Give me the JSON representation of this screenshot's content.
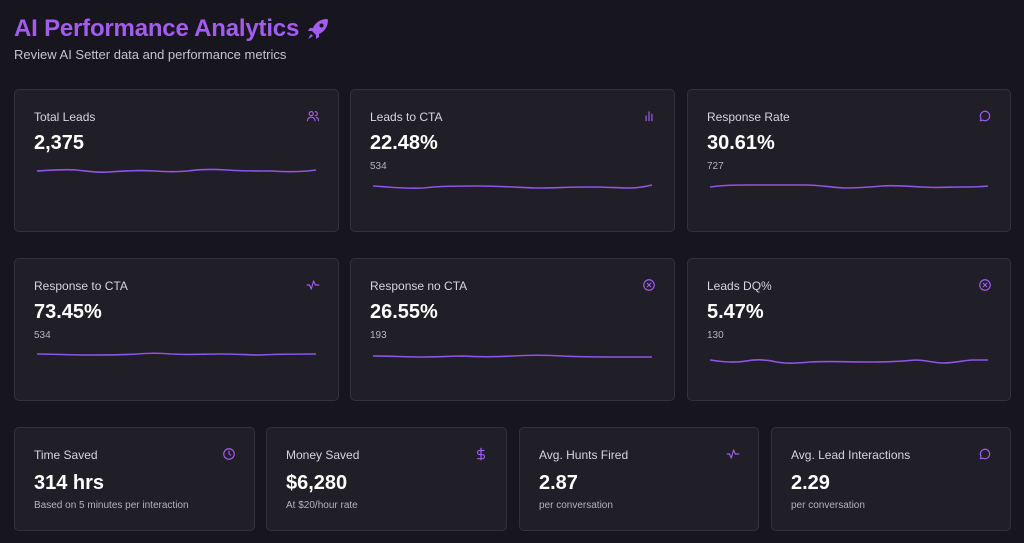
{
  "header": {
    "title": "AI Performance Analytics",
    "subtitle": "Review AI Setter data and performance metrics"
  },
  "colors": {
    "accent": "#a35cf0",
    "background": "#17151d",
    "card": "#201e27",
    "card_border": "#34313d",
    "sparkline": "#8f55e6"
  },
  "metrics": [
    {
      "label": "Total Leads",
      "value": "2,375",
      "sub": "",
      "icon": "users-icon"
    },
    {
      "label": "Leads to CTA",
      "value": "22.48%",
      "sub": "534",
      "icon": "bar-chart-icon"
    },
    {
      "label": "Response Rate",
      "value": "30.61%",
      "sub": "727",
      "icon": "message-circle-icon"
    },
    {
      "label": "Response to CTA",
      "value": "73.45%",
      "sub": "534",
      "icon": "activity-icon"
    },
    {
      "label": "Response no CTA",
      "value": "26.55%",
      "sub": "193",
      "icon": "x-circle-icon"
    },
    {
      "label": "Leads DQ%",
      "value": "5.47%",
      "sub": "130",
      "icon": "x-circle-icon"
    }
  ],
  "summary": [
    {
      "label": "Time Saved",
      "value": "314 hrs",
      "sub": "Based on 5 minutes per interaction",
      "icon": "clock-icon"
    },
    {
      "label": "Money Saved",
      "value": "$6,280",
      "sub": "At $20/hour rate",
      "icon": "dollar-icon"
    },
    {
      "label": "Avg. Hunts Fired",
      "value": "2.87",
      "sub": "per conversation",
      "icon": "activity-icon"
    },
    {
      "label": "Avg. Lead Interactions",
      "value": "2.29",
      "sub": "per conversation",
      "icon": "message-circle-icon"
    }
  ]
}
